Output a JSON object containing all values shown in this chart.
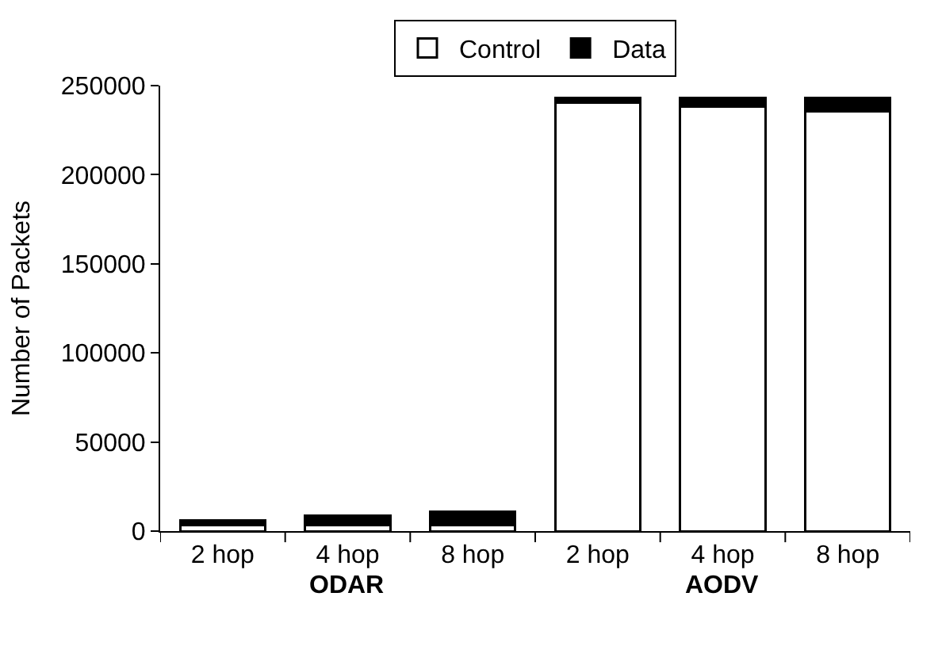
{
  "chart_data": {
    "type": "bar",
    "stacked": true,
    "ylabel": "Number of Packets",
    "categories": [
      "2 hop",
      "4 hop",
      "8 hop",
      "2 hop",
      "4 hop",
      "8 hop"
    ],
    "series": [
      {
        "name": "Control",
        "color": "#ffffff",
        "values": [
          3500,
          3500,
          3500,
          240500,
          238000,
          235500
        ]
      },
      {
        "name": "Data",
        "color": "#000000",
        "values": [
          2500,
          5000,
          7500,
          2500,
          5000,
          7500
        ]
      }
    ],
    "annotations": [
      "ODAR",
      "AODV"
    ],
    "ylim": [
      0,
      250000
    ],
    "yticks": [
      0,
      50000,
      100000,
      150000,
      200000,
      250000
    ],
    "legend": "top"
  }
}
